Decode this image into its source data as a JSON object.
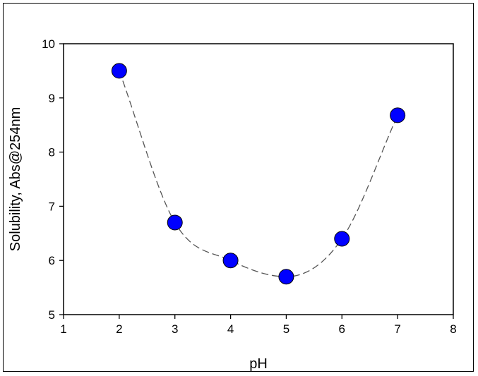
{
  "chart_data": {
    "type": "scatter",
    "title": "",
    "xlabel": "pH",
    "ylabel": "Solubility, Abs@254nm",
    "xlim": [
      1,
      8
    ],
    "ylim": [
      5,
      10
    ],
    "xticks": [
      "1",
      "2",
      "3",
      "4",
      "5",
      "6",
      "7",
      "8"
    ],
    "yticks": [
      "5",
      "6",
      "7",
      "8",
      "9",
      "10"
    ],
    "grid": false,
    "legend": "none",
    "series": [
      {
        "x": [
          2,
          3,
          4,
          5,
          6,
          7
        ],
        "y": [
          9.5,
          6.7,
          6.0,
          5.7,
          6.4,
          8.68
        ],
        "marker_color": "#0000ff",
        "line_style": "dashed smooth curve",
        "line_color": "#555555"
      }
    ]
  }
}
